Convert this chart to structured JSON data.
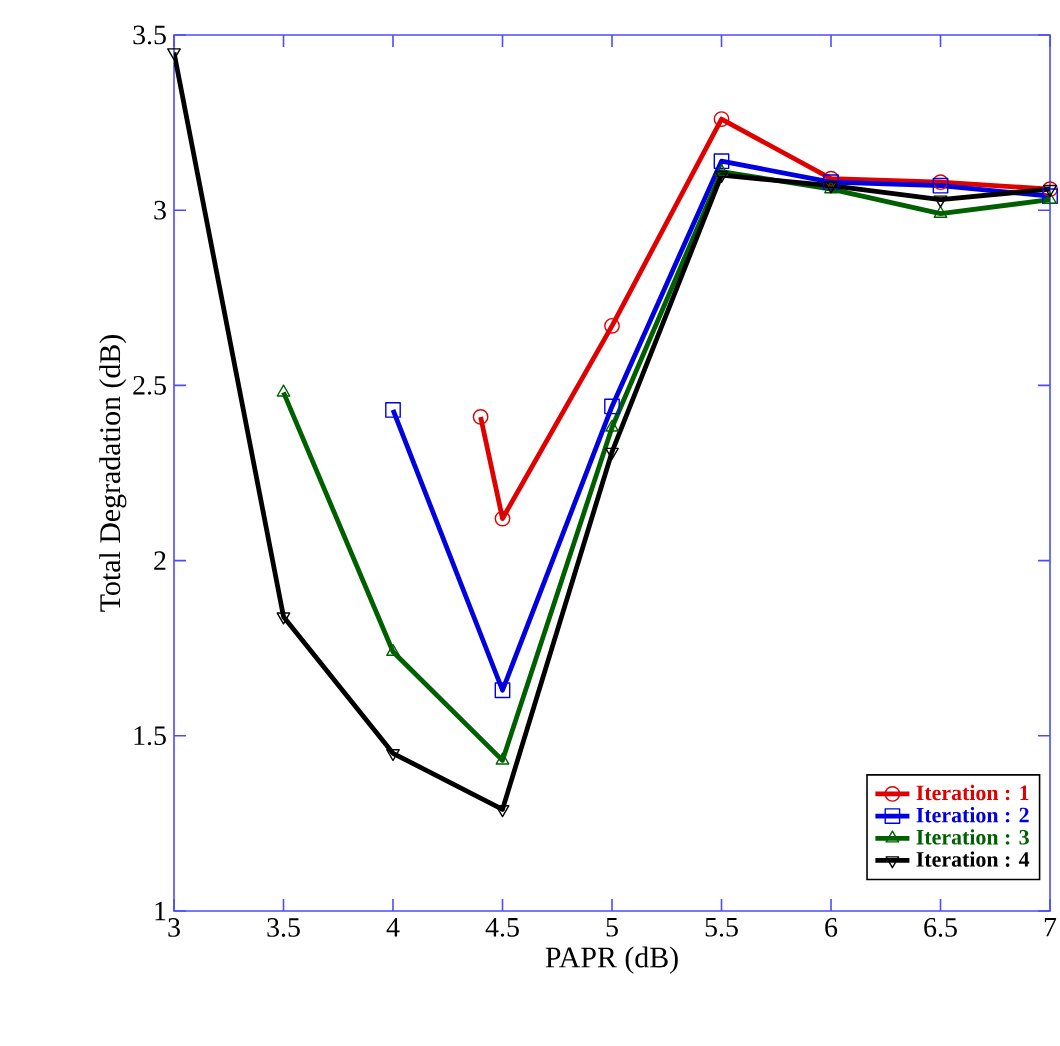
{
  "chart_data": {
    "type": "line",
    "xlabel": "PAPR (dB)",
    "ylabel": "Total Degradation (dB)",
    "xlim": [
      3,
      7
    ],
    "ylim": [
      1,
      3.5
    ],
    "xticks": [
      3,
      3.5,
      4,
      4.5,
      5,
      5.5,
      6,
      6.5,
      7
    ],
    "yticks": [
      1,
      1.5,
      2,
      2.5,
      3,
      3.5
    ],
    "legend": "bottom right",
    "series": [
      {
        "name": "Iteration : 1",
        "color": "#e00000",
        "marker": "circle",
        "x": [
          4.4,
          4.5,
          5,
          5.5,
          6,
          6.5,
          7
        ],
        "values": [
          2.41,
          2.12,
          2.67,
          3.26,
          3.09,
          3.08,
          3.06
        ]
      },
      {
        "name": "Iteration : 2",
        "color": "#0000e0",
        "marker": "square",
        "x": [
          4,
          4.5,
          5,
          5.5,
          6,
          6.5,
          7
        ],
        "values": [
          2.43,
          1.63,
          2.44,
          3.14,
          3.08,
          3.07,
          3.04
        ]
      },
      {
        "name": "Iteration : 3",
        "color": "#006000",
        "marker": "triangle",
        "x": [
          3.5,
          4,
          4.5,
          5,
          5.5,
          6,
          6.5,
          7
        ],
        "values": [
          2.48,
          1.74,
          1.43,
          2.38,
          3.11,
          3.06,
          2.99,
          3.03
        ]
      },
      {
        "name": "Iteration : 4",
        "color": "#000000",
        "marker": "triangle down",
        "x": [
          3,
          3.5,
          4,
          4.5,
          5,
          5.5,
          6,
          6.5,
          7
        ],
        "values": [
          3.45,
          1.84,
          1.45,
          1.29,
          2.31,
          3.1,
          3.07,
          3.03,
          3.06
        ]
      }
    ]
  }
}
